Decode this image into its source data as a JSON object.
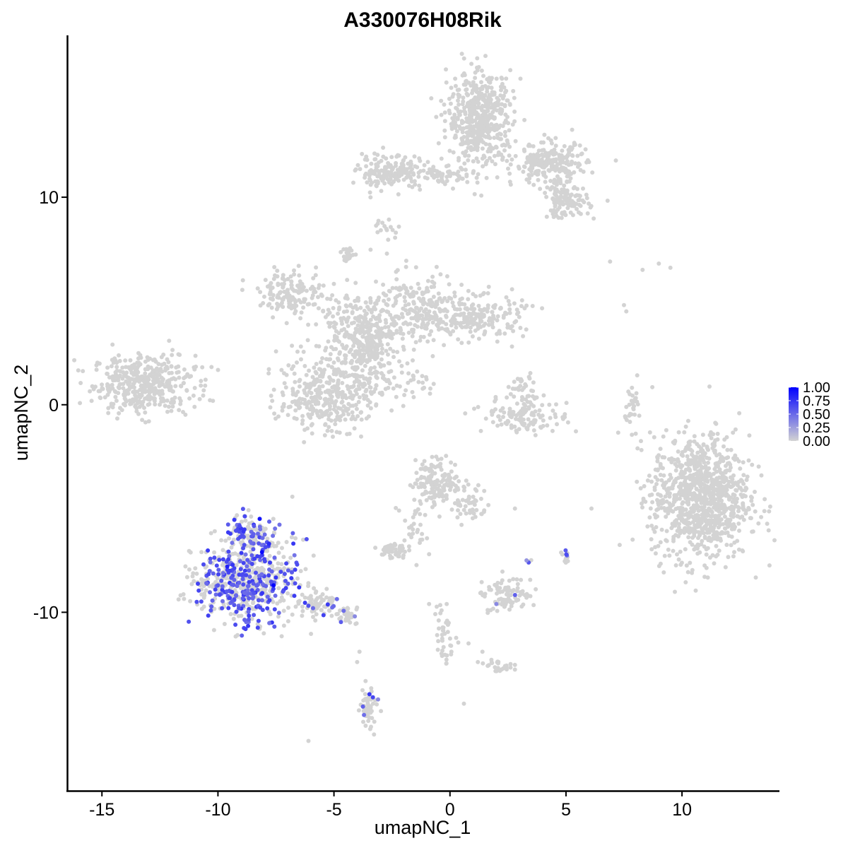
{
  "chart_data": {
    "type": "scatter",
    "title": "A330076H08Rik",
    "xlabel": "umapNC_1",
    "ylabel": "umapNC_2",
    "xlim": [
      -16.5,
      14.2
    ],
    "ylim": [
      -18.6,
      17.8
    ],
    "x_ticks": [
      -15,
      -10,
      -5,
      0,
      5,
      10
    ],
    "x_tick_labels": [
      "-15",
      "-10",
      "-5",
      "0",
      "5",
      "10"
    ],
    "y_ticks": [
      -10,
      0,
      10
    ],
    "y_tick_labels": [
      "-10",
      "0",
      "10"
    ],
    "grid": false,
    "legend_position": "right",
    "colors": {
      "low": "#d3d3d3",
      "high": "#0000ff"
    },
    "color_scale": {
      "min": 0,
      "max": 1,
      "ticks": [
        1.0,
        0.75,
        0.5,
        0.25,
        0.0
      ],
      "labels": [
        "1.00",
        "0.75",
        "0.50",
        "0.25",
        "0.00"
      ]
    },
    "clusters": [
      {
        "cx": -13.2,
        "cy": 1.0,
        "sx": 1.1,
        "sy": 0.7,
        "n": 420,
        "expr": 0
      },
      {
        "cx": -2.6,
        "cy": 11.2,
        "sx": 0.7,
        "sy": 0.4,
        "n": 160,
        "expr": 0
      },
      {
        "cx": -0.5,
        "cy": 11.0,
        "sx": 0.8,
        "sy": 0.25,
        "n": 70,
        "expr": 0
      },
      {
        "cx": 1.3,
        "cy": 13.8,
        "sx": 0.7,
        "sy": 1.1,
        "n": 520,
        "expr": 0
      },
      {
        "cx": 4.3,
        "cy": 11.6,
        "sx": 0.8,
        "sy": 0.5,
        "n": 230,
        "expr": 0
      },
      {
        "cx": 5.0,
        "cy": 9.8,
        "sx": 0.5,
        "sy": 0.4,
        "n": 120,
        "expr": 0
      },
      {
        "cx": -2.7,
        "cy": 8.5,
        "sx": 0.25,
        "sy": 0.25,
        "n": 16,
        "expr": 0
      },
      {
        "cx": -4.4,
        "cy": 7.3,
        "sx": 0.15,
        "sy": 0.2,
        "n": 22,
        "expr": 0
      },
      {
        "cx": -6.8,
        "cy": 5.4,
        "sx": 0.7,
        "sy": 0.5,
        "n": 140,
        "expr": 0
      },
      {
        "cx": -4.0,
        "cy": 3.7,
        "sx": 0.9,
        "sy": 0.9,
        "n": 260,
        "expr": 0
      },
      {
        "cx": -1.3,
        "cy": 4.6,
        "sx": 0.9,
        "sy": 0.9,
        "n": 220,
        "expr": 0
      },
      {
        "cx": 1.2,
        "cy": 4.2,
        "sx": 1.0,
        "sy": 0.5,
        "n": 190,
        "expr": 0
      },
      {
        "cx": -3.4,
        "cy": 2.2,
        "sx": 0.6,
        "sy": 1.0,
        "n": 160,
        "expr": 0
      },
      {
        "cx": -5.4,
        "cy": 0.5,
        "sx": 1.0,
        "sy": 0.9,
        "n": 330,
        "expr": 0
      },
      {
        "cx": -2.0,
        "cy": 1.0,
        "sx": 0.7,
        "sy": 0.35,
        "n": 35,
        "expr": 0
      },
      {
        "cx": 3.3,
        "cy": -0.5,
        "sx": 0.9,
        "sy": 0.45,
        "n": 130,
        "expr": 0
      },
      {
        "cx": 3.1,
        "cy": 0.8,
        "sx": 0.3,
        "sy": 0.35,
        "n": 30,
        "expr": 0
      },
      {
        "cx": 7.9,
        "cy": -0.0,
        "sx": 0.2,
        "sy": 0.6,
        "n": 30,
        "expr": 0
      },
      {
        "cx": 10.8,
        "cy": -4.5,
        "sx": 1.05,
        "sy": 1.5,
        "n": 1000,
        "expr": 0
      },
      {
        "cx": -0.5,
        "cy": -3.7,
        "sx": 0.5,
        "sy": 0.55,
        "n": 150,
        "expr": 0
      },
      {
        "cx": 0.8,
        "cy": -4.8,
        "sx": 0.4,
        "sy": 0.5,
        "n": 50,
        "expr": 0
      },
      {
        "cx": -1.6,
        "cy": -5.6,
        "sx": 0.25,
        "sy": 0.7,
        "n": 30,
        "expr": 0
      },
      {
        "cx": -2.5,
        "cy": -7.0,
        "sx": 0.3,
        "sy": 0.2,
        "n": 50,
        "expr": 0
      },
      {
        "cx": 2.5,
        "cy": -9.2,
        "sx": 0.5,
        "sy": 0.45,
        "n": 90,
        "expr": 0.005
      },
      {
        "cx": -0.2,
        "cy": -11.2,
        "sx": 0.2,
        "sy": 0.7,
        "n": 40,
        "expr": 0
      },
      {
        "cx": 2.2,
        "cy": -12.6,
        "sx": 0.35,
        "sy": 0.15,
        "n": 25,
        "expr": 0
      },
      {
        "cx": -3.5,
        "cy": -14.7,
        "sx": 0.2,
        "sy": 0.6,
        "n": 55,
        "expr": 0.02
      },
      {
        "cx": -8.8,
        "cy": -8.5,
        "sx": 1.05,
        "sy": 0.95,
        "n": 620,
        "expr": 0.38
      },
      {
        "cx": -8.5,
        "cy": -6.2,
        "sx": 0.5,
        "sy": 0.5,
        "n": 110,
        "expr": 0.35
      },
      {
        "cx": -5.7,
        "cy": -9.6,
        "sx": 0.5,
        "sy": 0.3,
        "n": 70,
        "expr": 0.05
      },
      {
        "cx": -4.5,
        "cy": -10.1,
        "sx": 0.3,
        "sy": 0.2,
        "n": 30,
        "expr": 0.03
      },
      {
        "cx": 5.0,
        "cy": -7.3,
        "sx": 0.12,
        "sy": 0.15,
        "n": 12,
        "expr": 0.3
      },
      {
        "cx": 3.4,
        "cy": -7.6,
        "sx": 0.05,
        "sy": 0.05,
        "n": 4,
        "expr": 0.3
      }
    ],
    "points": [
      {
        "x": -2.2,
        "y": 12.0,
        "expr": 0
      },
      {
        "x": -3.4,
        "y": 11.3,
        "expr": 0
      },
      {
        "x": 6.9,
        "y": 6.9,
        "expr": 0
      },
      {
        "x": 8.3,
        "y": 6.5,
        "expr": 0
      },
      {
        "x": 9.5,
        "y": 6.6,
        "expr": 0
      },
      {
        "x": 9.0,
        "y": 6.8,
        "expr": 0
      },
      {
        "x": 7.5,
        "y": 4.8,
        "expr": 0
      },
      {
        "x": 7.6,
        "y": 4.5,
        "expr": 0
      },
      {
        "x": -1.2,
        "y": -6.5,
        "expr": 0
      },
      {
        "x": -0.9,
        "y": -7.2,
        "expr": 0
      },
      {
        "x": -0.9,
        "y": -9.6,
        "expr": 0
      },
      {
        "x": 0.8,
        "y": -11.5,
        "expr": 0
      },
      {
        "x": 1.4,
        "y": -11.9,
        "expr": 0
      },
      {
        "x": 1.2,
        "y": -12.4,
        "expr": 0
      },
      {
        "x": -3.9,
        "y": -11.9,
        "expr": 0
      },
      {
        "x": -4.0,
        "y": -12.4,
        "expr": 0
      },
      {
        "x": -6.1,
        "y": -16.2,
        "expr": 0
      },
      {
        "x": 0.6,
        "y": -14.4,
        "expr": 0
      },
      {
        "x": 2.8,
        "y": -5.0,
        "expr": 0
      },
      {
        "x": 6.1,
        "y": -5.0,
        "expr": 0
      },
      {
        "x": 3.3,
        "y": -7.5,
        "expr": 0.3
      },
      {
        "x": 2.0,
        "y": -9.6,
        "expr": 0.35
      },
      {
        "x": -4.1,
        "y": -10.2,
        "expr": 0.35
      },
      {
        "x": -3.1,
        "y": -14.2,
        "expr": 0.35
      },
      {
        "x": -9.6,
        "y": -7.8,
        "expr": 0.85
      },
      {
        "x": -8.2,
        "y": -5.5,
        "expr": 0.9
      },
      {
        "x": -8.1,
        "y": -7.1,
        "expr": 0.95
      },
      {
        "x": -7.8,
        "y": -6.7,
        "expr": 0.8
      },
      {
        "x": -8.9,
        "y": -6.1,
        "expr": 0.75
      },
      {
        "x": -7.6,
        "y": -8.7,
        "expr": 1.0
      },
      {
        "x": -6.5,
        "y": -8.8,
        "expr": 0.75
      },
      {
        "x": -9.5,
        "y": -8.0,
        "expr": 0.7
      },
      {
        "x": -8.3,
        "y": -7.3,
        "expr": 0.7
      },
      {
        "x": -10.0,
        "y": -8.7,
        "expr": 0.6
      },
      {
        "x": -7.2,
        "y": -9.0,
        "expr": 0.6
      },
      {
        "x": -9.1,
        "y": -9.8,
        "expr": 0.6
      },
      {
        "x": -5.9,
        "y": -9.8,
        "expr": 0.5
      },
      {
        "x": -10.5,
        "y": -8.6,
        "expr": 0.5
      }
    ]
  }
}
